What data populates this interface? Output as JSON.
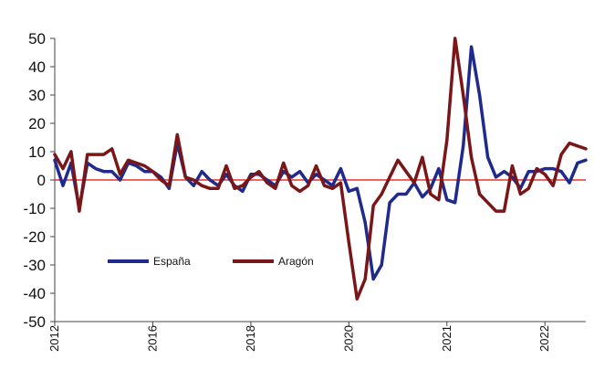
{
  "chart_data": {
    "type": "line",
    "title": "",
    "xlabel": "",
    "ylabel": "",
    "ylim": [
      -50,
      50
    ],
    "yticks": [
      50,
      40,
      30,
      20,
      10,
      0,
      -10,
      -20,
      -30,
      -40,
      -50
    ],
    "xtick_labels": [
      "2012",
      "2016",
      "2018",
      "2020",
      "2021",
      "2022"
    ],
    "xtick_positions": [
      0,
      12,
      24,
      36,
      48,
      60
    ],
    "grid": false,
    "reference_line": {
      "y": 0,
      "color": "#e8332a"
    },
    "legend": "inside-lower-left",
    "series": [
      {
        "name": "España",
        "color": "#1f2a8c",
        "x": [
          0,
          1,
          2,
          3,
          4,
          5,
          6,
          7,
          8,
          9,
          10,
          11,
          12,
          13,
          14,
          15,
          16,
          17,
          18,
          19,
          20,
          21,
          22,
          23,
          24,
          25,
          26,
          27,
          28,
          29,
          30,
          31,
          32,
          33,
          34,
          35,
          36,
          37,
          38,
          39,
          40,
          41,
          42,
          43,
          44,
          45,
          46,
          47,
          48,
          49,
          50,
          51,
          52,
          53,
          54,
          55,
          56,
          57,
          58,
          59,
          60,
          61,
          62,
          63,
          64,
          65
        ],
        "values": [
          7,
          -2,
          6,
          -10,
          6,
          4,
          3,
          3,
          0,
          6,
          5,
          3,
          3,
          1,
          -3,
          13,
          1,
          -2,
          3,
          0,
          -2,
          2,
          -2,
          -4,
          2,
          2,
          0,
          -2,
          3,
          1,
          3,
          -1,
          2,
          0,
          -2,
          4,
          -4,
          -3,
          -15,
          -35,
          -30,
          -8,
          -5,
          -5,
          -1,
          -6,
          -3,
          4,
          -7,
          -8,
          12,
          47,
          30,
          8,
          1,
          3,
          1,
          -3,
          3,
          3,
          4,
          4,
          3,
          -1,
          6,
          7
        ]
      },
      {
        "name": "Aragón",
        "color": "#7a1518",
        "x": [
          0,
          1,
          2,
          3,
          4,
          5,
          6,
          7,
          8,
          9,
          10,
          11,
          12,
          13,
          14,
          15,
          16,
          17,
          18,
          19,
          20,
          21,
          22,
          23,
          24,
          25,
          26,
          27,
          28,
          29,
          30,
          31,
          32,
          33,
          34,
          35,
          36,
          37,
          38,
          39,
          40,
          41,
          42,
          43,
          44,
          45,
          46,
          47,
          48,
          49,
          50,
          51,
          52,
          53,
          54,
          55,
          56,
          57,
          58,
          59,
          60,
          61,
          62,
          63,
          64,
          65
        ],
        "values": [
          9,
          4,
          10,
          -11,
          9,
          9,
          9,
          11,
          2,
          7,
          6,
          5,
          3,
          0,
          -2,
          16,
          1,
          0,
          -2,
          -3,
          -3,
          5,
          -3,
          -2,
          1,
          3,
          -1,
          -3,
          6,
          -2,
          -4,
          -2,
          5,
          -2,
          -3,
          -1,
          -22,
          -42,
          -35,
          -9,
          -5,
          1,
          7,
          3,
          -1,
          8,
          -5,
          -7,
          14,
          50,
          30,
          8,
          -5,
          -8,
          -11,
          -11,
          5,
          -5,
          -3,
          4,
          2,
          -2,
          9,
          13,
          12,
          11
        ]
      }
    ]
  }
}
